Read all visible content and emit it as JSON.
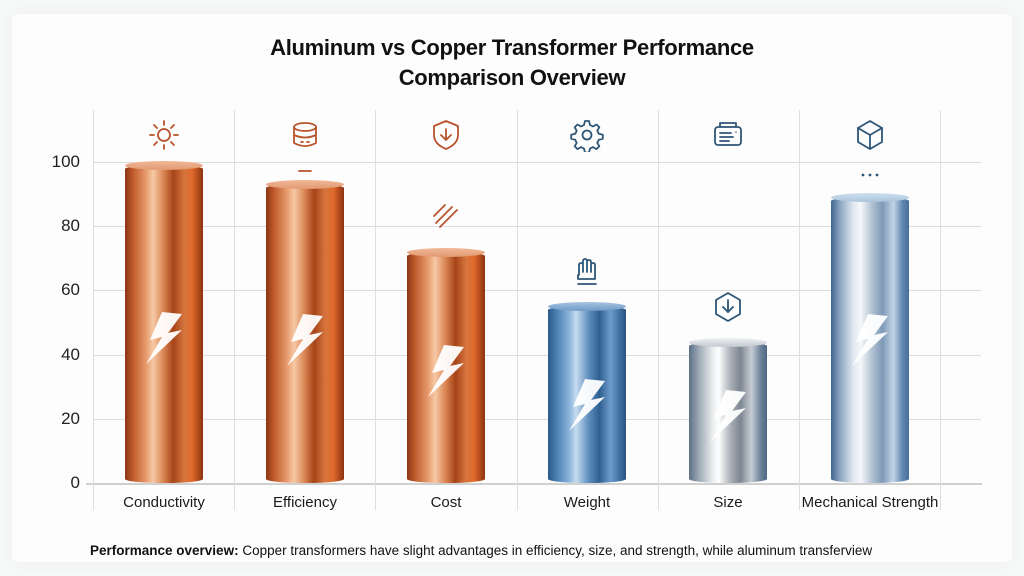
{
  "colors": {
    "copper": "#c9653a",
    "aluminum_blue": "#4e82b6",
    "aluminum_silver": "#b8c0c8",
    "icon_copper": "#b8532b",
    "icon_blue": "#2e5678",
    "grid": "#dcdcdc"
  },
  "chart_data": {
    "type": "bar",
    "title": "Aluminum vs Copper Transformer Performance Comparison Overview",
    "title_lines": [
      "Aluminum vs Copper Transformer Performance",
      "Comparison Overview"
    ],
    "xlabel": "",
    "ylabel": "",
    "ylim": [
      0,
      100
    ],
    "yticks": [
      "0",
      "20",
      "40",
      "60",
      "80",
      "100"
    ],
    "grid": true,
    "legend": null,
    "categories": [
      "Conductivity",
      "Efficiency",
      "Cost",
      "Weight",
      "Size",
      "Mechanical Strength"
    ],
    "values": [
      99,
      93,
      72,
      55,
      44,
      89
    ],
    "bar_materials": [
      "copper",
      "copper",
      "copper",
      "aluminum-blue",
      "aluminum-silver",
      "aluminum-silverblue"
    ],
    "column_icons": [
      "sun-icon",
      "database-icon",
      "shield-download-icon",
      "gear-icon",
      "printer-icon",
      "cube-icon"
    ],
    "annotation_icons": [
      "",
      "dash-mark-icon",
      "hatch-lines-icon",
      "hand-icon",
      "hexagon-download-icon",
      "ellipsis-icon"
    ],
    "bar_overlay_icon": "lightning-bolt-icon"
  },
  "footer": {
    "label": "Performance overview:",
    "text": " Copper transformers have slight advantages in efficiency, size, and strength, while aluminum transferview"
  }
}
